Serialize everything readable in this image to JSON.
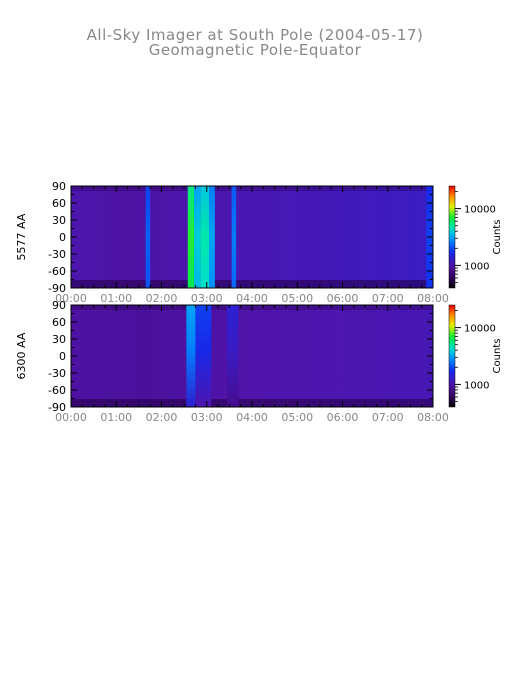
{
  "title": "All-Sky Imager at South Pole (2004-05-17)",
  "subtitle": "Geomagnetic Pole-Equator",
  "colors": {
    "background": "#ffffff",
    "title_text": "#888888",
    "axis": "#000000",
    "tick_label_x": "#888888",
    "tick_label_y": "#000000"
  },
  "chart_data": [
    {
      "type": "heatmap",
      "ylabel": "5577 AA",
      "x_tick_labels": [
        "00:00",
        "01:00",
        "02:00",
        "03:00",
        "04:00",
        "05:00",
        "06:00",
        "07:00",
        "08:00"
      ],
      "x_range_hours": [
        0,
        8
      ],
      "y_tick_labels": [
        "90",
        "60",
        "30",
        "0",
        "-30",
        "-60",
        "-90"
      ],
      "y_range": [
        -90,
        90
      ],
      "colorbar": {
        "label": "Counts",
        "scale": "log",
        "tick_labels": [
          "10000",
          "1000"
        ],
        "tick_values": [
          10000,
          1000
        ]
      },
      "features": [
        {
          "t_start_hours": 1.65,
          "t_end_hours": 1.75,
          "intensity": 0.42
        },
        {
          "t_start_hours": 2.58,
          "t_end_hours": 2.72,
          "intensity": 0.7
        },
        {
          "t_start_hours": 2.72,
          "t_end_hours": 2.86,
          "intensity": 0.55
        },
        {
          "t_start_hours": 2.86,
          "t_end_hours": 3.05,
          "intensity": 0.6
        },
        {
          "t_start_hours": 3.05,
          "t_end_hours": 3.18,
          "intensity": 0.5
        },
        {
          "t_start_hours": 3.55,
          "t_end_hours": 3.65,
          "intensity": 0.45
        },
        {
          "t_start_hours": 7.85,
          "t_end_hours": 8.0,
          "intensity": 0.38
        }
      ]
    },
    {
      "type": "heatmap",
      "ylabel": "6300 AA",
      "x_tick_labels": [
        "00:00",
        "01:00",
        "02:00",
        "03:00",
        "04:00",
        "05:00",
        "06:00",
        "07:00",
        "08:00"
      ],
      "x_range_hours": [
        0,
        8
      ],
      "y_tick_labels": [
        "90",
        "60",
        "30",
        "0",
        "-30",
        "-60",
        "-90"
      ],
      "y_range": [
        -90,
        90
      ],
      "colorbar": {
        "label": "Counts",
        "scale": "log",
        "tick_labels": [
          "10000",
          "1000"
        ],
        "tick_values": [
          10000,
          1000
        ]
      },
      "features": [
        {
          "t_start_hours": 2.55,
          "t_end_hours": 2.75,
          "intensity": 0.5
        },
        {
          "t_start_hours": 2.75,
          "t_end_hours": 3.1,
          "intensity": 0.38
        },
        {
          "t_start_hours": 3.45,
          "t_end_hours": 3.7,
          "intensity": 0.3
        }
      ]
    }
  ]
}
